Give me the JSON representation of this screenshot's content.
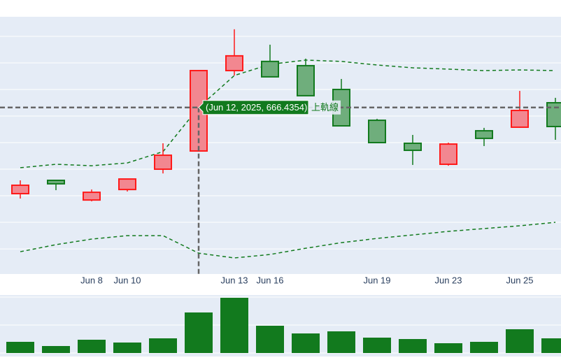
{
  "chart_data": [
    {
      "type": "candlestick",
      "categories": [
        null,
        null,
        "Jun 8",
        "Jun 10",
        null,
        null,
        "Jun 13",
        "Jun 16",
        null,
        null,
        "Jun 19",
        null,
        "Jun 23",
        null,
        "Jun 25",
        null
      ],
      "open": [
        601.6,
        611.6,
        596.8,
        604.7,
        620.0,
        633.7,
        694.2,
        701.1,
        697.9,
        680.0,
        656.8,
        639.5,
        623.7,
        648.9,
        651.6,
        670.0
      ],
      "high": [
        611.6,
        611.6,
        604.7,
        612.6,
        639.5,
        694.2,
        725.3,
        713.7,
        703.2,
        687.9,
        657.9,
        645.8,
        640.0,
        651.1,
        678.9,
        673.7
      ],
      "low": [
        597.9,
        604.2,
        595.8,
        603.2,
        616.8,
        633.7,
        690.5,
        689.5,
        675.3,
        652.6,
        640.0,
        623.2,
        622.6,
        637.4,
        651.1,
        642.1
      ],
      "close": [
        607.9,
        609.0,
        602.6,
        612.6,
        630.5,
        694.2,
        705.3,
        689.5,
        675.3,
        652.6,
        640.0,
        634.2,
        638.9,
        643.2,
        664.2,
        652.1
      ],
      "increasing_color": "#ff1a1a",
      "increasing_fill": "#f28790",
      "decreasing_color": "#127a1e",
      "decreasing_fill": "#6fae7c",
      "series": [
        {
          "name": "上軌線",
          "color": "#127a1e",
          "values": [
            621.1,
            623.7,
            622.6,
            624.7,
            633.2,
            666.4354,
            690.5,
            698.9,
            702.1,
            701.1,
            698.4,
            696.3,
            695.3,
            694.2,
            694.7,
            694.2
          ]
        },
        {
          "color": "#127a1e",
          "values": [
            557.9,
            563.2,
            567.4,
            570.0,
            570.0,
            556.8,
            553.2,
            555.8,
            560.5,
            564.7,
            567.9,
            570.5,
            573.2,
            575.3,
            577.4,
            580.0
          ]
        }
      ],
      "ylim": [
        541.1,
        734.7
      ],
      "yticks": [
        560,
        580,
        600,
        620,
        640,
        660,
        680,
        700,
        720
      ],
      "grid": true,
      "hover": {
        "index": 5,
        "series": 0,
        "text": "(Jun 12, 2025, 666.4354)"
      }
    },
    {
      "type": "bar",
      "color": "#127a1e",
      "values": [
        8000,
        5000,
        9500,
        7500,
        10500,
        29000,
        39500,
        19500,
        14000,
        15500,
        11000,
        10000,
        7000,
        8000,
        17000,
        10500
      ],
      "ylim": [
        0,
        41500
      ],
      "yticks": [
        0,
        20000,
        40000
      ],
      "grid": true
    }
  ]
}
